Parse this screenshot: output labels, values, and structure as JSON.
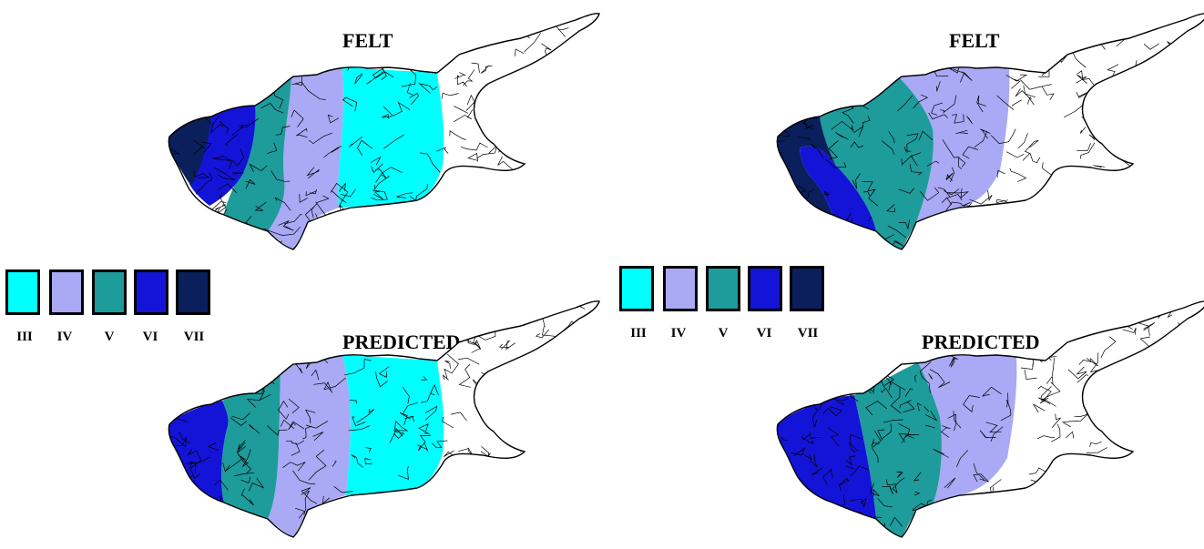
{
  "maps": [
    {
      "id": "left-felt",
      "title": "FELT"
    },
    {
      "id": "left-predicted",
      "title": "PREDICTED"
    },
    {
      "id": "right-felt",
      "title": "FELT"
    },
    {
      "id": "right-predicted",
      "title": "PREDICTED"
    }
  ],
  "legend": {
    "entries": [
      {
        "label": "III",
        "color": "#00FFFF"
      },
      {
        "label": "IV",
        "color": "#A9A9F5"
      },
      {
        "label": "V",
        "color": "#1E9B9B"
      },
      {
        "label": "VI",
        "color": "#1414D8"
      },
      {
        "label": "VII",
        "color": "#0A1F5C"
      }
    ]
  },
  "colors": {
    "none": "#FFFFFF",
    "outline": "#000000"
  }
}
